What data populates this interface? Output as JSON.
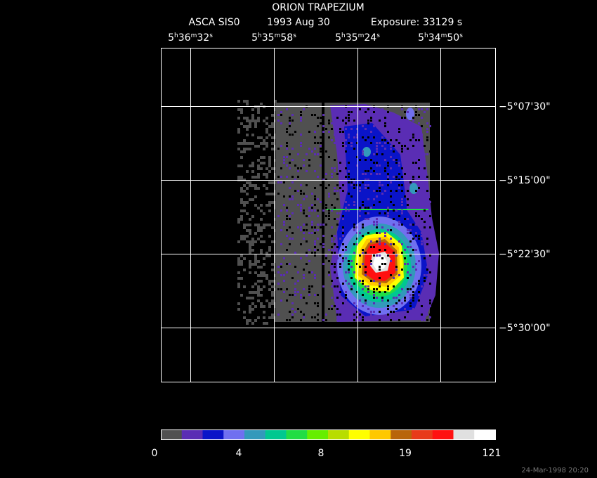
{
  "header": {
    "title": "ORION TRAPEZIUM",
    "subtitle": [
      "ASCA SIS0",
      "1993 Aug 30",
      "Exposure: 33129 s"
    ]
  },
  "ra_labels": [
    [
      "5",
      "h",
      "36",
      "m",
      "32",
      "s"
    ],
    [
      "5",
      "h",
      "35",
      "m",
      "58",
      "s"
    ],
    [
      "5",
      "h",
      "35",
      "m",
      "24",
      "s"
    ],
    [
      "5",
      "h",
      "34",
      "m",
      "50",
      "s"
    ]
  ],
  "dec_labels": [
    "−5°07'30\"",
    "−5°15'00\"",
    "−5°22'30\"",
    "−5°30'00\""
  ],
  "colorbar": {
    "colors": [
      "#505050",
      "#5a2db4",
      "#0a14c8",
      "#7070f0",
      "#3399bb",
      "#00c890",
      "#22dd44",
      "#66ee00",
      "#b8dd00",
      "#ffff00",
      "#ffc800",
      "#b8650a",
      "#e83a1a",
      "#ff1010",
      "#e0e0e0",
      "#ffffff"
    ],
    "labels": [
      "0",
      "4",
      "8",
      "19",
      "121"
    ]
  },
  "timestamp": "24-Mar-1998 20:20"
}
